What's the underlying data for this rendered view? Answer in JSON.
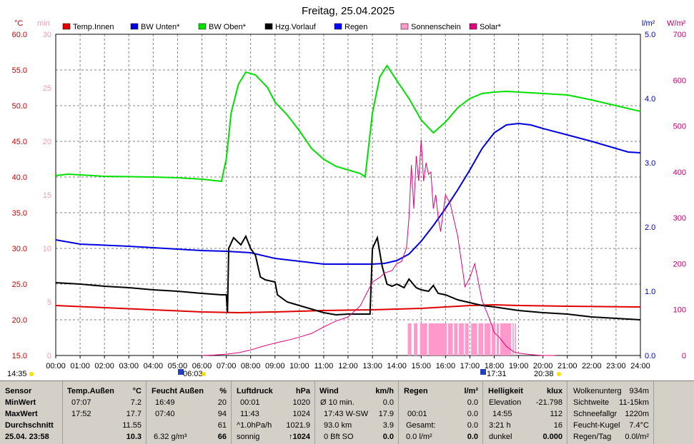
{
  "title": "Freitag, 25.04.2025",
  "colors": {
    "temp_innen": "#e00000",
    "bw_unten": "#0000e0",
    "bw_oben": "#00e000",
    "hzg_vorlauf": "#000000",
    "regen": "#0000ff",
    "sonnenschein": "#ff99cc",
    "solar": "#e0007a"
  },
  "legend": [
    {
      "label": "Temp.Innen",
      "color": "#e00000"
    },
    {
      "label": "BW Unten*",
      "color": "#0000e0"
    },
    {
      "label": "BW Oben*",
      "color": "#00e000"
    },
    {
      "label": "Hzg.Vorlauf",
      "color": "#000000"
    },
    {
      "label": "Regen",
      "color": "#0000ff"
    },
    {
      "label": "Sonnenschein",
      "color": "#ff99cc"
    },
    {
      "label": "Solar*",
      "color": "#e0007a"
    }
  ],
  "axis_units": {
    "left_c": "°C",
    "left_min": "min",
    "right_rain": "l/m²",
    "right_solar": "W/m²"
  },
  "marker_labels": {
    "sunrise": "06:03",
    "sunset": "20:38",
    "daylight_start": "14:35",
    "marker_17": "17:31"
  },
  "chart_data": {
    "type": "line",
    "x_label_ticks": [
      "00:00",
      "01:00",
      "02:00",
      "03:00",
      "04:00",
      "05:00",
      "06:00",
      "07:00",
      "08:00",
      "09:00",
      "10:00",
      "11:00",
      "12:00",
      "13:00",
      "14:00",
      "15:00",
      "16:00",
      "17:00",
      "18:00",
      "19:00",
      "20:00",
      "21:00",
      "22:00",
      "23:00",
      "24:00"
    ],
    "xlim": [
      0,
      24
    ],
    "y_left_ticks": [
      "60.0",
      "55.0",
      "50.0",
      "45.0",
      "40.0",
      "35.0",
      "30.0",
      "25.0",
      "20.0",
      "15.0"
    ],
    "y_left_min_ticks": [
      "30",
      "25",
      "20",
      "15",
      "10",
      "5",
      "0"
    ],
    "y_right_rain_ticks": [
      "5.0",
      "4.0",
      "3.0",
      "2.0",
      "1.0",
      "0.0"
    ],
    "y_right_solar_ticks": [
      "700",
      "600",
      "500",
      "400",
      "300",
      "200",
      "100",
      "0"
    ],
    "ylim_left": [
      15,
      60
    ],
    "ylim_rain": [
      0,
      5
    ],
    "ylim_solar": [
      0,
      700
    ],
    "series": [
      {
        "name": "Temp.Innen",
        "axis": "left",
        "color": "#e00000",
        "x": [
          0,
          2,
          4,
          6,
          7.5,
          9,
          11,
          13,
          15,
          17,
          18,
          19,
          21,
          24
        ],
        "y": [
          22.0,
          21.7,
          21.4,
          21.1,
          21.0,
          21.1,
          21.3,
          21.4,
          21.6,
          22.0,
          22.1,
          22.0,
          21.9,
          21.8
        ]
      },
      {
        "name": "BW Unten*",
        "axis": "left",
        "color": "#0000e0",
        "x": [
          0,
          1,
          3,
          5,
          6,
          7,
          8,
          9,
          10,
          11,
          12,
          13,
          13.5,
          14,
          14.5,
          15,
          15.5,
          16,
          16.5,
          17,
          17.5,
          18,
          18.5,
          19,
          19.5,
          20,
          21,
          22,
          23,
          23.5,
          24
        ],
        "y": [
          31.2,
          30.6,
          30.3,
          29.9,
          29.7,
          29.6,
          29.4,
          28.6,
          28.2,
          27.8,
          27.8,
          27.8,
          27.9,
          28.3,
          29.2,
          31.0,
          33.2,
          35.6,
          38.2,
          41.0,
          44.0,
          46.2,
          47.3,
          47.5,
          47.3,
          46.8,
          45.9,
          45.0,
          44.0,
          43.5,
          43.4
        ]
      },
      {
        "name": "BW Oben*",
        "axis": "left",
        "color": "#00e000",
        "x": [
          0,
          0.5,
          2,
          4,
          5,
          6,
          6.8,
          7,
          7.2,
          7.5,
          7.8,
          8.2,
          8.7,
          9,
          9.5,
          10,
          10.5,
          11,
          11.5,
          12,
          12.5,
          12.7,
          13,
          13.3,
          13.6,
          14,
          14.5,
          15,
          15.5,
          16,
          16.5,
          17,
          17.5,
          18,
          18.5,
          19,
          20,
          21,
          22,
          23,
          24
        ],
        "y": [
          40.2,
          40.4,
          40.1,
          40.0,
          39.9,
          39.7,
          39.4,
          42.5,
          49.0,
          53.0,
          54.7,
          54.3,
          52.5,
          50.5,
          48.7,
          46.5,
          44.0,
          42.5,
          41.5,
          41.0,
          40.5,
          40.0,
          49.0,
          54.0,
          55.6,
          53.5,
          51.0,
          48.0,
          46.2,
          47.7,
          49.7,
          51.0,
          51.7,
          51.9,
          52.0,
          51.9,
          51.7,
          51.5,
          50.8,
          50.0,
          49.2
        ]
      },
      {
        "name": "Hzg.Vorlauf",
        "axis": "left",
        "color": "#000000",
        "x": [
          0,
          1,
          2,
          3,
          4,
          5,
          6,
          6.8,
          7.0,
          7.05,
          7.1,
          7.3,
          7.6,
          7.8,
          8.0,
          8.2,
          8.4,
          8.6,
          9.0,
          9.1,
          9.5,
          10,
          10.5,
          11,
          11.5,
          12,
          12.5,
          12.9,
          13.0,
          13.2,
          13.4,
          13.6,
          13.8,
          14.0,
          14.3,
          14.5,
          14.8,
          15.0,
          15.3,
          15.5,
          15.7,
          16,
          16.5,
          17,
          17.5,
          18,
          19,
          20,
          21,
          22,
          23,
          24
        ],
        "y": [
          25.2,
          25.0,
          24.7,
          24.5,
          24.2,
          24.0,
          23.7,
          23.5,
          23.5,
          21.0,
          30.0,
          31.5,
          30.5,
          31.7,
          30.0,
          29.0,
          26.0,
          25.6,
          25.3,
          23.5,
          22.5,
          22.0,
          21.5,
          21.0,
          20.7,
          20.8,
          20.8,
          20.8,
          30.0,
          31.5,
          27.5,
          25.0,
          24.7,
          25.0,
          24.5,
          25.7,
          24.5,
          24.2,
          24.0,
          24.8,
          23.7,
          23.5,
          22.8,
          22.4,
          22.0,
          21.8,
          21.3,
          21.0,
          20.8,
          20.4,
          20.2,
          20.0
        ]
      },
      {
        "name": "Solar*",
        "axis": "solar",
        "color": "#e0007a",
        "x": [
          6.0,
          6.5,
          7,
          7.5,
          8,
          8.5,
          9,
          9.5,
          10,
          10.5,
          11,
          11.5,
          12,
          12.5,
          13,
          13.3,
          13.5,
          13.8,
          14,
          14.2,
          14.4,
          14.5,
          14.6,
          14.7,
          14.8,
          14.9,
          15.0,
          15.1,
          15.2,
          15.3,
          15.4,
          15.5,
          15.6,
          15.7,
          15.8,
          16,
          16.2,
          16.5,
          16.8,
          17.0,
          17.2,
          17.5,
          17.8,
          18.0,
          18.2,
          18.5,
          18.8,
          19,
          19.5,
          20,
          20.5
        ],
        "y": [
          0,
          1,
          3,
          6,
          12,
          20,
          27,
          33,
          40,
          48,
          62,
          75,
          84,
          108,
          160,
          170,
          180,
          185,
          200,
          205,
          235,
          300,
          415,
          320,
          435,
          380,
          470,
          380,
          420,
          395,
          400,
          320,
          350,
          300,
          270,
          350,
          330,
          260,
          150,
          170,
          200,
          120,
          80,
          50,
          40,
          20,
          8,
          5,
          2,
          0,
          0
        ]
      }
    ],
    "sunshine_intervals": [
      [
        14.45,
        14.6
      ],
      [
        14.7,
        14.85
      ],
      [
        14.95,
        15.25
      ],
      [
        15.3,
        16.05
      ],
      [
        16.1,
        16.3
      ],
      [
        16.35,
        16.5
      ],
      [
        16.55,
        16.75
      ],
      [
        16.8,
        16.95
      ],
      [
        17.05,
        17.3
      ],
      [
        17.35,
        17.55
      ],
      [
        17.6,
        17.85
      ],
      [
        17.9,
        18.05
      ],
      [
        18.1,
        18.2
      ],
      [
        18.25,
        18.7
      ],
      [
        18.75,
        18.8
      ],
      [
        18.85,
        18.9
      ]
    ]
  },
  "stats": {
    "sensor": {
      "header": "Sensor",
      "rows": [
        "MinWert",
        "MaxWert",
        "Durchschnitt",
        "25.04. 23:58"
      ]
    },
    "temp": {
      "header": "Temp.Außen",
      "unit": "°C",
      "rows": [
        [
          "07:07",
          "7.2"
        ],
        [
          "17:52",
          "17.7"
        ],
        [
          "",
          "11.55"
        ],
        [
          "",
          "10.3"
        ]
      ]
    },
    "feucht": {
      "header": "Feucht Außen",
      "unit": "%",
      "rows": [
        [
          "16:49",
          "20"
        ],
        [
          "07:40",
          "94"
        ],
        [
          "",
          "61"
        ],
        [
          "6.32 g/m³",
          "66"
        ]
      ]
    },
    "luft": {
      "header": "Luftdruck",
      "unit": "hPa",
      "rows": [
        [
          "00:01",
          "1020"
        ],
        [
          "11:43",
          "1024"
        ],
        [
          "^1.0hPa/h",
          "1021.9"
        ],
        [
          "sonnig",
          "↑1024"
        ]
      ]
    },
    "wind": {
      "header": "Wind",
      "unit": "km/h",
      "rows": [
        [
          "Ø 10 min.",
          "0.0"
        ],
        [
          "17:43   W-SW",
          "17.9"
        ],
        [
          "93.0 km",
          "3.9"
        ],
        [
          "0 Bft SO",
          "0.0"
        ]
      ]
    },
    "regen": {
      "header": "Regen",
      "unit": "l/m²",
      "rows": [
        [
          "",
          "0.0"
        ],
        [
          "00:01",
          "0.0"
        ],
        [
          "Gesamt:",
          "0.0"
        ],
        [
          "0.0 l/m²",
          "0.0"
        ]
      ]
    },
    "hell": {
      "header": "Helligkeit",
      "unit": "klux",
      "rows": [
        [
          "Elevation",
          "-21.798"
        ],
        [
          "14:55",
          "112"
        ],
        [
          "3:21 h",
          "16"
        ],
        [
          "dunkel",
          "0.000"
        ]
      ]
    },
    "extra": {
      "rows": [
        [
          "Wolkenunterg",
          "934m"
        ],
        [
          "Sichtweite",
          "11-15km"
        ],
        [
          "Schneefallgr",
          "1220m"
        ],
        [
          "Feucht-Kugel",
          "7.4°C"
        ],
        [
          "Regen/Tag",
          "0.0l/m²"
        ]
      ]
    }
  }
}
